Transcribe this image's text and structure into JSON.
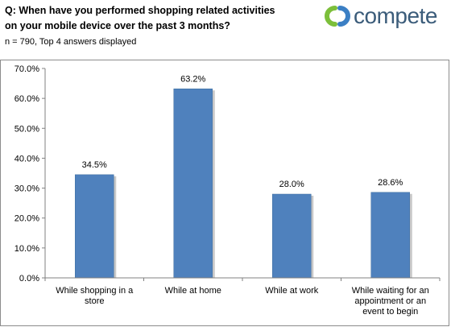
{
  "header": {
    "question_line1": "Q: When have you performed shopping related activities",
    "question_line2": "on your mobile device over the past 3 months?",
    "note": "n = 790, Top 4 answers displayed"
  },
  "logo": {
    "text": "compete",
    "color": "#3b5c7a",
    "mark_colors": [
      "#7cbf3a",
      "#3b7fc4"
    ]
  },
  "colors": {
    "bar": "#4f81bd",
    "bar_edge": "#3f6e9e"
  },
  "chart_data": {
    "type": "bar",
    "categories": [
      [
        "While shopping in a",
        "store"
      ],
      [
        "While at home"
      ],
      [
        "While at work"
      ],
      [
        "While waiting for an",
        "appointment or an",
        "event to begin"
      ]
    ],
    "values": [
      34.5,
      63.2,
      28.0,
      28.6
    ],
    "value_labels": [
      "34.5%",
      "63.2%",
      "28.0%",
      "28.6%"
    ],
    "ylim": [
      0,
      70
    ],
    "y_ticks": [
      "0.0%",
      "10.0%",
      "20.0%",
      "30.0%",
      "40.0%",
      "50.0%",
      "60.0%",
      "70.0%"
    ],
    "grid": false
  }
}
